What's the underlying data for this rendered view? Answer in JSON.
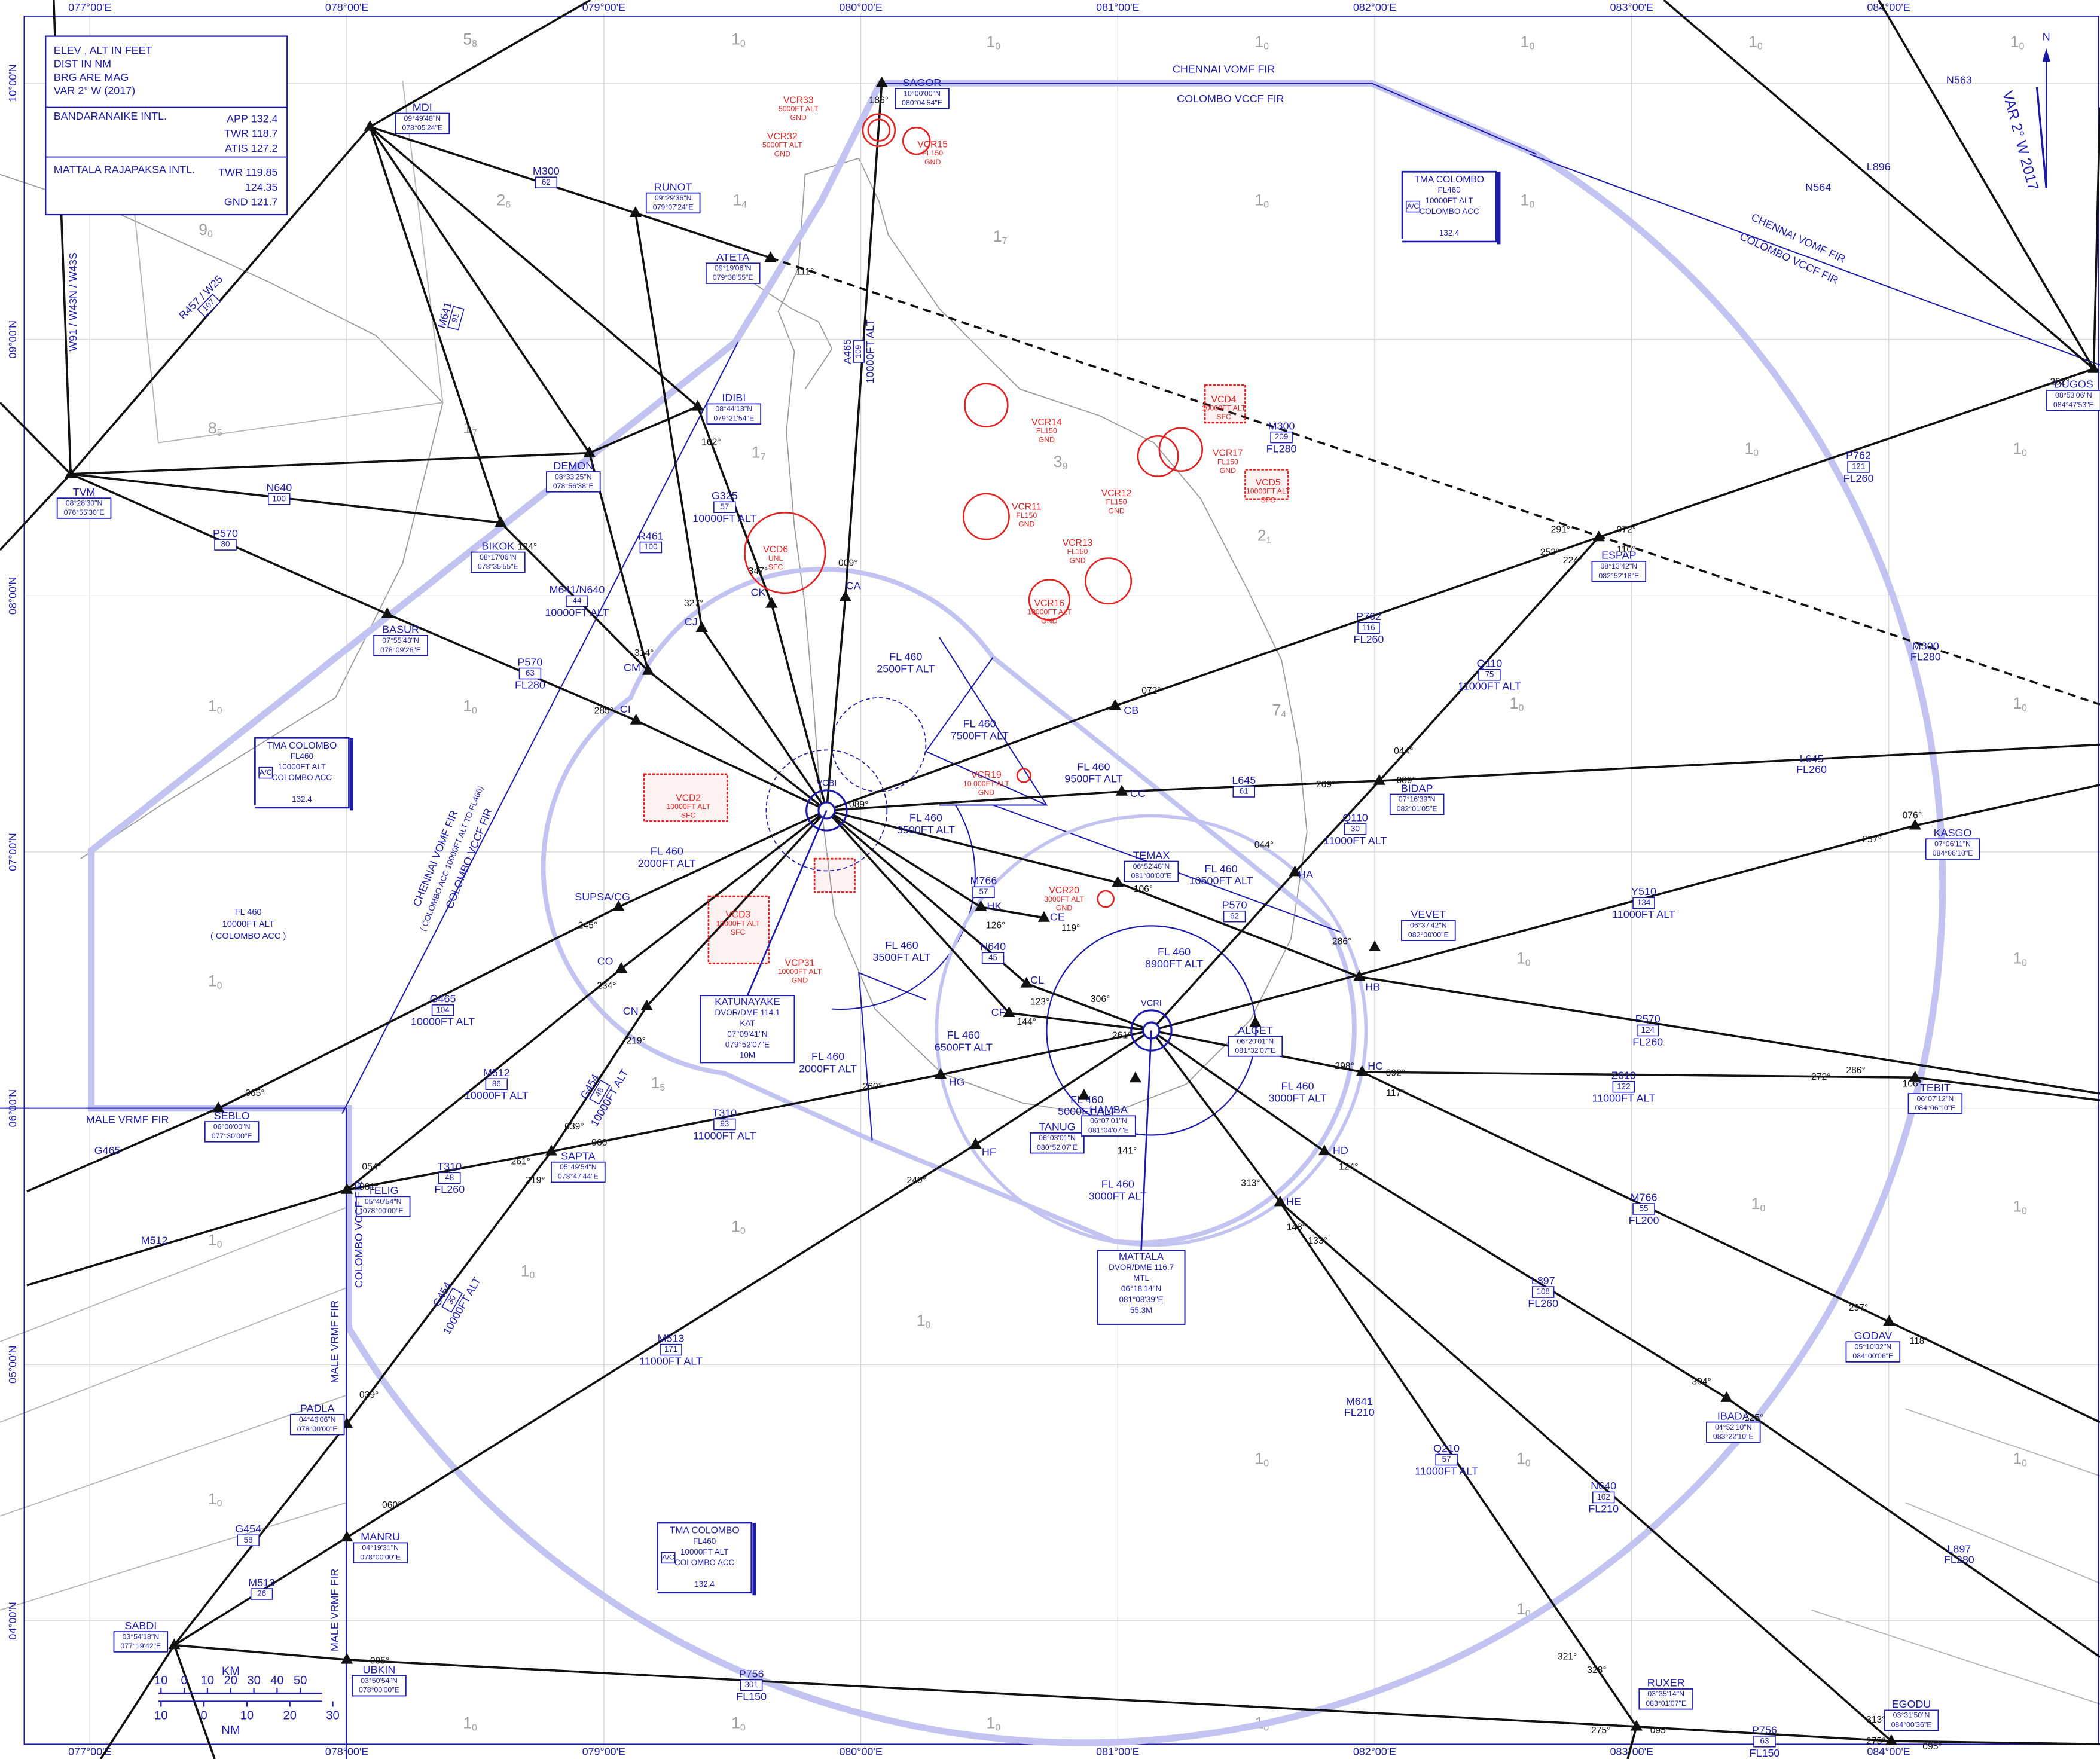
{
  "legend": {
    "lines": [
      "ELEV , ALT IN FEET",
      "DIST IN NM",
      "BRG ARE MAG",
      "VAR 2° W (2017)"
    ],
    "airports": [
      {
        "name": "BANDARANAIKE INTL.",
        "freqs": [
          "APP  132.4",
          "TWR 118.7",
          "ATIS  127.2"
        ]
      },
      {
        "name": "MATTALA RAJAPAKSA INTL.",
        "freqs": [
          "TWR 119.85",
          "124.35",
          "GND 121.7"
        ]
      }
    ]
  },
  "grid": {
    "lon_labels": [
      "077°00'E",
      "078°00'E",
      "079°00'E",
      "080°00'E",
      "081°00'E",
      "082°00'E",
      "083°00'E",
      "084°00'E"
    ],
    "lat_labels": [
      "10°00'N",
      "09°00'N",
      "08°00'N",
      "07°00'N",
      "06°00'N",
      "05°00'N",
      "04°00'N"
    ]
  },
  "waypoints": [
    {
      "name": "SAGOR",
      "coords": [
        "10°00'00\"N",
        "080°04'54\"E"
      ]
    },
    {
      "name": "MDI",
      "coords": [
        "09°49'48\"N",
        "078°05'24\"E"
      ]
    },
    {
      "name": "RUNOT",
      "coords": [
        "09°29'36\"N",
        "079°07'24\"E"
      ]
    },
    {
      "name": "ATETA",
      "coords": [
        "09°19'06\"N",
        "079°38'55\"E"
      ]
    },
    {
      "name": "IDIBI",
      "coords": [
        "08°44'18\"N",
        "079°21'54\"E"
      ]
    },
    {
      "name": "DEMON",
      "coords": [
        "08°33'25\"N",
        "078°56'38\"E"
      ]
    },
    {
      "name": "TVM",
      "coords": [
        "08°28'30\"N",
        "076°55'30\"E"
      ]
    },
    {
      "name": "BIKOK",
      "coords": [
        "08°17'06\"N",
        "078°35'55\"E"
      ]
    },
    {
      "name": "BASUR",
      "coords": [
        "07°55'43\"N",
        "078°09'26\"E"
      ]
    },
    {
      "name": "DUGOS",
      "coords": [
        "08°53'06\"N",
        "084°47'53\"E"
      ]
    },
    {
      "name": "ESPAP",
      "coords": [
        "08°13'42\"N",
        "082°52'18\"E"
      ]
    },
    {
      "name": "BIDAP",
      "coords": [
        "07°16'39\"N",
        "082°01'05\"E"
      ]
    },
    {
      "name": "KASGO",
      "coords": [
        "07°06'11\"N",
        "084°06'10\"E"
      ]
    },
    {
      "name": "TEMAX",
      "coords": [
        "06°52'48\"N",
        "081°00'00\"E"
      ]
    },
    {
      "name": "VEVET",
      "coords": [
        "06°37'42\"N",
        "082°00'00\"E"
      ]
    },
    {
      "name": "ALGET",
      "coords": [
        "06°20'01\"N",
        "081°32'07\"E"
      ]
    },
    {
      "name": "TEBIT",
      "coords": [
        "06°07'12\"N",
        "084°06'10\"E"
      ]
    },
    {
      "name": "SEBLO",
      "coords": [
        "06°00'00\"N",
        "077°30'00\"E"
      ]
    },
    {
      "name": "TELIG",
      "coords": [
        "05°40'54\"N",
        "078°00'00\"E"
      ]
    },
    {
      "name": "SAPTA",
      "coords": [
        "05°49'54\"N",
        "078°47'44\"E"
      ]
    },
    {
      "name": "TANUG",
      "coords": [
        "06°03'01\"N",
        "080°52'07\"E"
      ]
    },
    {
      "name": "HAMBA",
      "coords": [
        "06°07'01\"N",
        "081°04'07\"E"
      ]
    },
    {
      "name": "GODAV",
      "coords": [
        "05°10'02\"N",
        "084°00'06\"E"
      ]
    },
    {
      "name": "IBADA",
      "coords": [
        "04°52'10\"N",
        "083°22'10\"E"
      ]
    },
    {
      "name": "PADLA",
      "coords": [
        "04°46'06\"N",
        "078°00'00\"E"
      ]
    },
    {
      "name": "MANRU",
      "coords": [
        "04°19'31\"N",
        "078°00'00\"E"
      ]
    },
    {
      "name": "SABDI",
      "coords": [
        "03°54'18\"N",
        "077°19'42\"E"
      ]
    },
    {
      "name": "UBKIN",
      "coords": [
        "03°50'54\"N",
        "078°00'00\"E"
      ]
    },
    {
      "name": "RUXER",
      "coords": [
        "03°35'14\"N",
        "083°01'07\"E"
      ]
    },
    {
      "name": "EGODU",
      "coords": [
        "03°31'50\"N",
        "084°00'36\"E"
      ]
    }
  ],
  "fixes": [
    "CA",
    "CK",
    "CJ",
    "CM",
    "CI",
    "SUPSA/CG",
    "CO",
    "CN",
    "HK",
    "CE",
    "CL",
    "CF",
    "HG",
    "HF",
    "HA",
    "HB",
    "HC",
    "HD",
    "HE",
    "CB",
    "CC"
  ],
  "airports": [
    {
      "code": "VCBI",
      "lines": [
        "KATUNAYAKE",
        "DVOR/DME 114.1",
        "KAT",
        "07°09'41\"N",
        "079°52'07\"E",
        "10M"
      ]
    },
    {
      "code": "VCRI",
      "lines": [
        "MATTALA",
        "DVOR/DME 116.7",
        "MTL",
        "06°18'14\"N",
        "081°08'39\"E",
        "55.3M"
      ]
    }
  ],
  "airways": [
    {
      "name": "M300",
      "dist": "62"
    },
    {
      "name": "N640",
      "dist": "100"
    },
    {
      "name": "P570",
      "dist": "80"
    },
    {
      "name": "P570",
      "dist": "63",
      "alt": "FL280"
    },
    {
      "name": "R457 / W25",
      "dist": "107"
    },
    {
      "name": "W91 / W43N / W43S"
    },
    {
      "name": "M641",
      "dist": "91"
    },
    {
      "name": "R461",
      "dist": "100"
    },
    {
      "name": "M641/N640",
      "dist": "44",
      "alt": "10000FT ALT"
    },
    {
      "name": "G325",
      "dist": "57",
      "alt": "10000FT ALT"
    },
    {
      "name": "A465",
      "dist": "109",
      "alt": "10000FT ALT"
    },
    {
      "name": "P762",
      "dist": "116",
      "alt": "FL260"
    },
    {
      "name": "Q110",
      "dist": "75",
      "alt": "11000FT ALT"
    },
    {
      "name": "L645",
      "dist": "61"
    },
    {
      "name": "L645",
      "alt": "FL260"
    },
    {
      "name": "P762",
      "dist": "121",
      "alt": "FL260"
    },
    {
      "name": "M300",
      "dist": "209",
      "alt": "FL280"
    },
    {
      "name": "M300",
      "alt": "FL280"
    },
    {
      "name": "Q110",
      "dist": "30",
      "alt": "11000FT ALT"
    },
    {
      "name": "Y510",
      "dist": "134",
      "alt": "11000FT ALT"
    },
    {
      "name": "P570",
      "dist": "62"
    },
    {
      "name": "P570",
      "dist": "124",
      "alt": "FL260"
    },
    {
      "name": "Z610",
      "dist": "122",
      "alt": "11000FT ALT"
    },
    {
      "name": "M766",
      "dist": "55",
      "alt": "FL200"
    },
    {
      "name": "L897",
      "dist": "108",
      "alt": "FL260"
    },
    {
      "name": "M641",
      "alt": "FL210"
    },
    {
      "name": "Q210",
      "dist": "57",
      "alt": "11000FT ALT"
    },
    {
      "name": "N640",
      "dist": "102",
      "alt": "FL210"
    },
    {
      "name": "L897",
      "alt": "FL280"
    },
    {
      "name": "M766",
      "dist": "57"
    },
    {
      "name": "N640",
      "dist": "45"
    },
    {
      "name": "M513",
      "dist": "171",
      "alt": "11000FT ALT"
    },
    {
      "name": "G454",
      "dist": "30",
      "alt": "10000FT ALT"
    },
    {
      "name": "G454",
      "dist": "58"
    },
    {
      "name": "M513",
      "dist": "26"
    },
    {
      "name": "P756",
      "dist": "301",
      "alt": "FL150"
    },
    {
      "name": "P756",
      "dist": "63",
      "alt": "FL150"
    },
    {
      "name": "T310",
      "dist": "48",
      "alt": "FL260"
    },
    {
      "name": "T310",
      "dist": "93",
      "alt": "11000FT ALT"
    },
    {
      "name": "M512",
      "dist": "86",
      "alt": "10000FT ALT"
    },
    {
      "name": "G465",
      "dist": "104",
      "alt": "10000FT ALT"
    },
    {
      "name": "G454",
      "dist": "48",
      "alt": "10000FT ALT"
    },
    {
      "name": "G465"
    },
    {
      "name": "M512"
    },
    {
      "name": "N563"
    },
    {
      "name": "N564"
    },
    {
      "name": "L896"
    }
  ],
  "bearings": [
    "111°",
    "291°",
    "072°",
    "252°",
    "110°",
    "224°",
    "252°",
    "072°",
    "089°",
    "269°",
    "044°",
    "076°",
    "257°",
    "106°",
    "286°",
    "298°",
    "092°",
    "117°",
    "272°",
    "286°",
    "106°",
    "124°",
    "297°",
    "118°",
    "304°",
    "125°",
    "313°",
    "133°",
    "065°",
    "054°",
    "081°",
    "261°",
    "219°",
    "060°",
    "039°",
    "260°",
    "240°",
    "060°",
    "039°",
    "095°",
    "275°",
    "095°",
    "321°",
    "328°",
    "313°",
    "275°",
    "095°",
    "186°",
    "009°",
    "347°",
    "327°",
    "314°",
    "285°",
    "245°",
    "234°",
    "219°",
    "162°",
    "124°",
    "141°",
    "148°",
    "306°",
    "119°",
    "126°",
    "123°",
    "144°",
    "089°",
    "044°",
    "261°"
  ],
  "sectors": [
    [
      "FL 460",
      "2500FT ALT"
    ],
    [
      "FL 460",
      "7500FT ALT"
    ],
    [
      "FL 460",
      "9500FT ALT"
    ],
    [
      "FL 460",
      "3500FT ALT"
    ],
    [
      "FL 460",
      "2000FT ALT"
    ],
    [
      "FL 460",
      "10500FT ALT"
    ],
    [
      "FL 460",
      "3500FT ALT"
    ],
    [
      "FL 460",
      "8900FT ALT"
    ],
    [
      "FL 460",
      "6500FT ALT"
    ],
    [
      "FL 460",
      "2000FT ALT"
    ],
    [
      "FL 460",
      "3000FT ALT"
    ],
    [
      "FL 460",
      "5000FT ALT"
    ],
    [
      "FL 460",
      "3000FT ALT"
    ],
    [
      "FL 460",
      "10000FT ALT",
      "( COLOMBO ACC )"
    ]
  ],
  "restricted": [
    [
      "VCR33",
      "5000FT ALT",
      "GND"
    ],
    [
      "VCR32",
      "5000FT ALT",
      "GND"
    ],
    [
      "VCR15",
      "FL150",
      "GND"
    ],
    [
      "VCR14",
      "FL150",
      "GND"
    ],
    [
      "VCD4",
      "10000FT ALT",
      "SFC"
    ],
    [
      "VCR17",
      "FL150",
      "GND"
    ],
    [
      "VCR12",
      "FL150",
      "GND"
    ],
    [
      "VCD5",
      "10000FT ALT",
      "SFC"
    ],
    [
      "VCR11",
      "FL150",
      "GND"
    ],
    [
      "VCR13",
      "FL150",
      "GND"
    ],
    [
      "VCR16",
      "10000FT ALT",
      "GND"
    ],
    [
      "VCD6",
      "UNL",
      "SFC"
    ],
    [
      "VCD2",
      "10000FT ALT",
      "SFC"
    ],
    [
      "VCD3",
      "10000FT ALT",
      "SFC"
    ],
    [
      "VCR19",
      "10 000FT ALT",
      "GND"
    ],
    [
      "VCR20",
      "3000FT ALT",
      "GND"
    ],
    [
      "VCP31",
      "10000FT ALT",
      "GND"
    ]
  ],
  "tma": [
    {
      "lines": [
        "TMA COLOMBO",
        "FL460",
        "10000FT ALT",
        "COLOMBO ACC"
      ],
      "class": "A/C",
      "freq": "132.4"
    },
    {
      "lines": [
        "TMA COLOMBO",
        "FL460",
        "10000FT ALT",
        "COLOMBO ACC"
      ],
      "class": "A/C",
      "freq": "132.4"
    },
    {
      "lines": [
        "TMA COLOMBO",
        "FL460",
        "10000FT ALT",
        "COLOMBO ACC"
      ],
      "class": "A/C",
      "freq": "132.4"
    }
  ],
  "fir_labels": [
    "CHENNAI VOMF FIR",
    "COLOMBO VCCF FIR",
    "CHENNAI VOMF FIR",
    "COLOMBO VCCF FIR",
    "CHENNAI VOMF FIR",
    "( COLOMBO ACC 10000FT ALT TO FL460)",
    "COLOMBO VCCF FIR",
    "MALE VRMF FIR",
    "MALE VRMF FIR",
    "COLOMBO VCCF FIR",
    "MALE VRMF FIR"
  ],
  "mora": [
    [
      "5",
      "8"
    ],
    [
      "1",
      "0"
    ],
    [
      "1",
      "0"
    ],
    [
      "1",
      "0"
    ],
    [
      "1",
      "0"
    ],
    [
      "1",
      "0"
    ],
    [
      "1",
      "0"
    ],
    [
      "9",
      "0"
    ],
    [
      "2",
      "6"
    ],
    [
      "1",
      "4"
    ],
    [
      "1",
      "7"
    ],
    [
      "1",
      "0"
    ],
    [
      "1",
      "0"
    ],
    [
      "8",
      "5"
    ],
    [
      "1",
      "7"
    ],
    [
      "1",
      "7"
    ],
    [
      "3",
      "9"
    ],
    [
      "2",
      "1"
    ],
    [
      "1",
      "0"
    ],
    [
      "1",
      "0"
    ],
    [
      "1",
      "0"
    ],
    [
      "1",
      "0"
    ],
    [
      "7",
      "4"
    ],
    [
      "1",
      "0"
    ],
    [
      "1",
      "0"
    ],
    [
      "1",
      "0"
    ],
    [
      "1",
      "0"
    ],
    [
      "1",
      "0"
    ],
    [
      "1",
      "5"
    ],
    [
      "1",
      "0"
    ],
    [
      "1",
      "0"
    ],
    [
      "1",
      "0"
    ],
    [
      "1",
      "0"
    ],
    [
      "1",
      "0"
    ],
    [
      "1",
      "0"
    ],
    [
      "1",
      "0"
    ],
    [
      "1",
      "0"
    ],
    [
      "1",
      "0"
    ],
    [
      "1",
      "0"
    ],
    [
      "1",
      "0"
    ],
    [
      "1",
      "0"
    ],
    [
      "1",
      "0"
    ],
    [
      "1",
      "0"
    ],
    [
      "1",
      "0"
    ]
  ],
  "compass": {
    "north": "N",
    "variation": "VAR 2° W 2017"
  },
  "scale": {
    "km_label": "KM",
    "km_ticks": [
      "10",
      "0",
      "10",
      "20",
      "30",
      "40",
      "50"
    ],
    "nm_label": "NM",
    "nm_ticks": [
      "10",
      "0",
      "10",
      "20",
      "30"
    ]
  }
}
